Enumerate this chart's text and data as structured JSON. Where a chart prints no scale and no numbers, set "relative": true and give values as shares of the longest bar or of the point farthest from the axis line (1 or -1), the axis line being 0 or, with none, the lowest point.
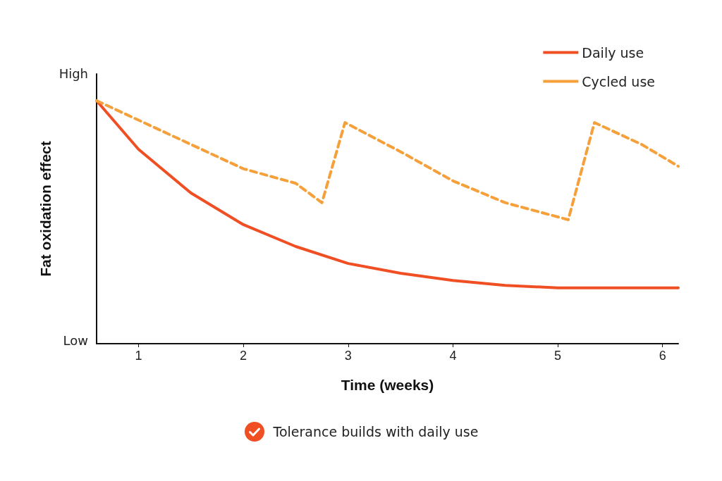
{
  "chart_data": {
    "type": "line",
    "xlabel": "Time (weeks)",
    "ylabel": "Fat oxidation effect",
    "xlim": [
      0.6,
      6.15
    ],
    "xticks": [
      1,
      2,
      3,
      4,
      5,
      6
    ],
    "relative": true,
    "grid": false,
    "legend": "top right",
    "marker": "none",
    "series": [
      {
        "name": "Daily use",
        "color": "#f04e23",
        "line_style": "solid",
        "x": [
          0.6,
          1,
          1.5,
          2,
          2.5,
          3,
          3.5,
          4,
          4.5,
          5,
          5.5,
          6.15
        ],
        "values": [
          1,
          0.8,
          0.62,
          0.49,
          0.4,
          0.33,
          0.29,
          0.26,
          0.24,
          0.23,
          0.23,
          0.23
        ]
      },
      {
        "name": "Cycled use",
        "color": "#f5a03a",
        "line_style": "dashed",
        "x": [
          0.6,
          1,
          1.5,
          2,
          2.5,
          2.75,
          2.97,
          3.5,
          4,
          4.5,
          5.1,
          5.35,
          5.8,
          6.15
        ],
        "values": [
          1,
          0.92,
          0.82,
          0.72,
          0.66,
          0.58,
          0.91,
          0.79,
          0.67,
          0.58,
          0.51,
          0.91,
          0.82,
          0.73
        ]
      }
    ],
    "annotations": [
      "High",
      "Low",
      "Tolerance builds with daily use"
    ]
  }
}
